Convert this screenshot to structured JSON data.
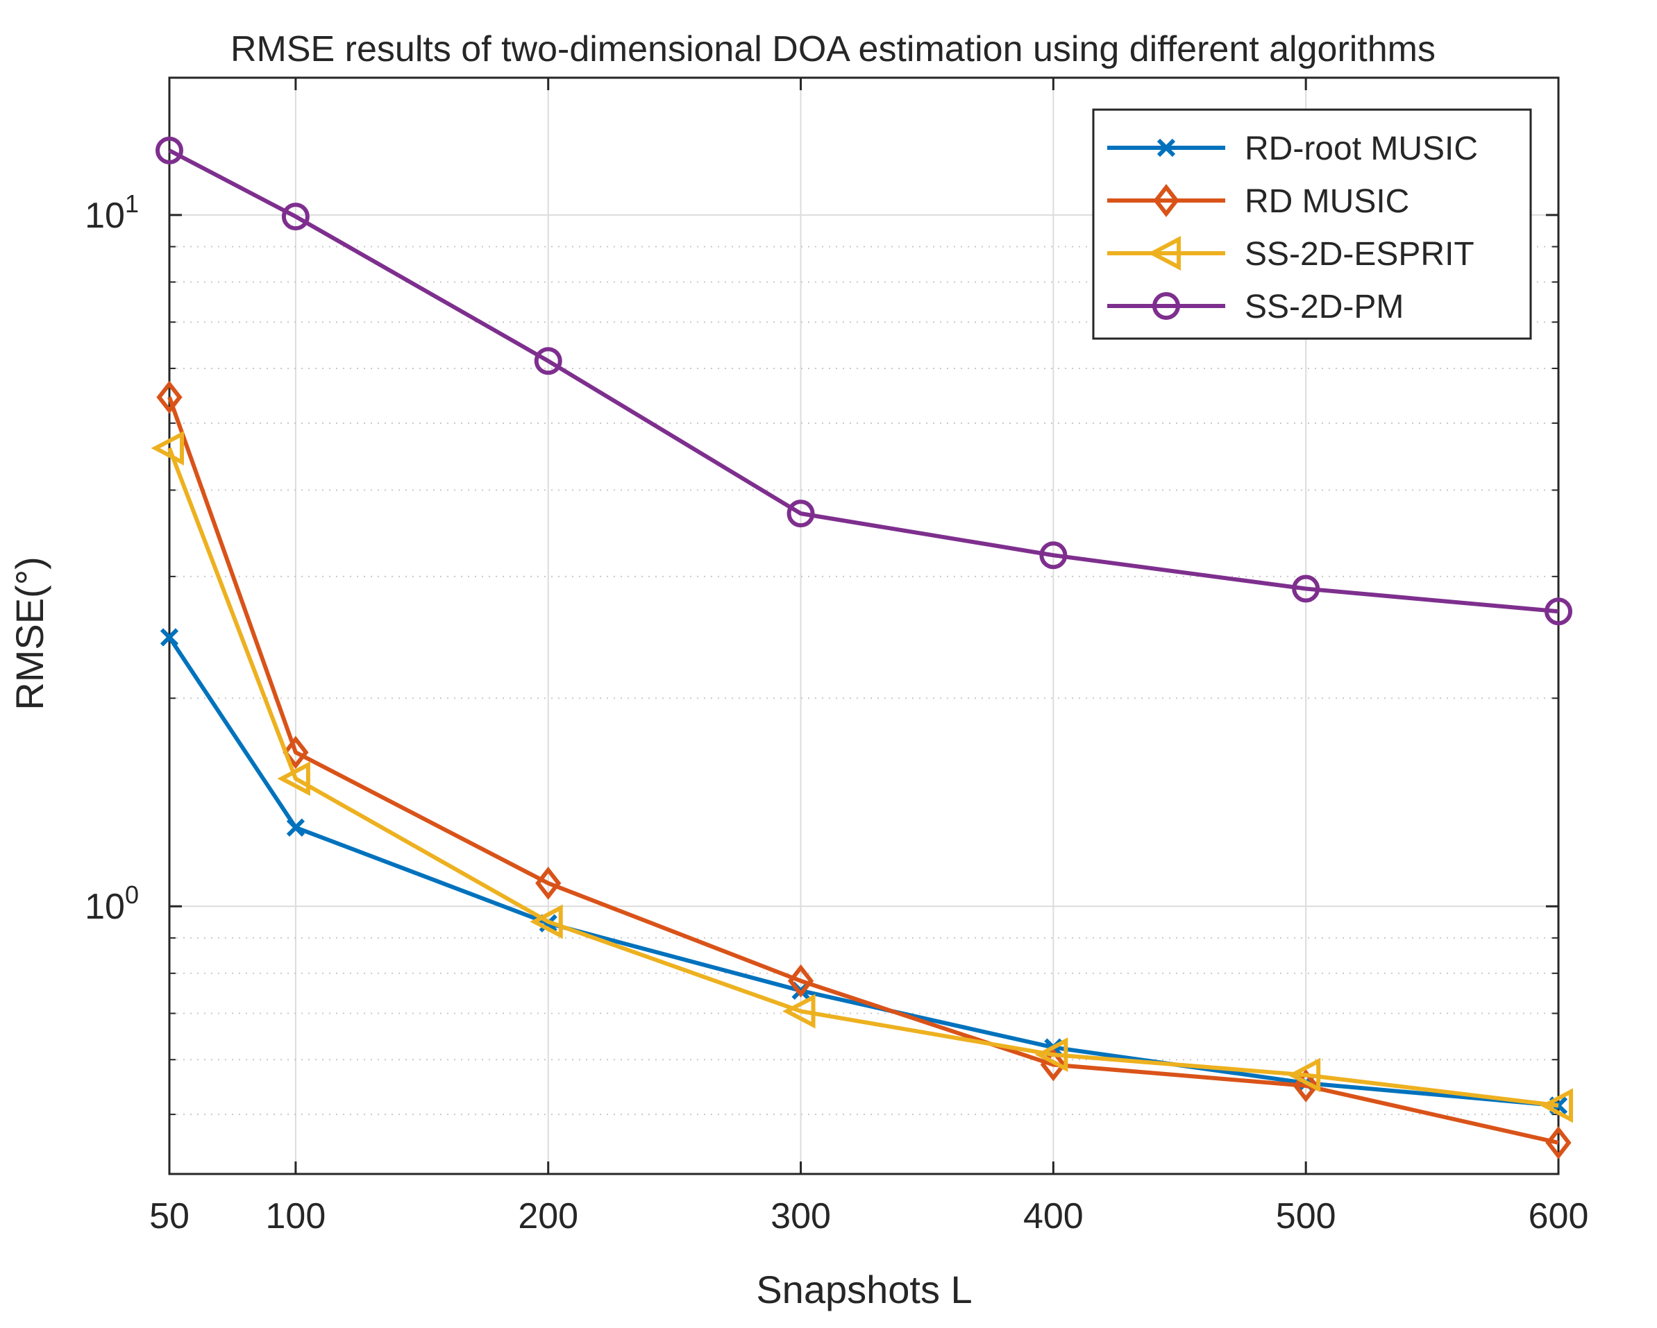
{
  "chart_data": {
    "type": "line",
    "title": "RMSE results of two-dimensional DOA estimation using different algorithms",
    "xlabel": "Snapshots L",
    "ylabel": "RMSE(°)",
    "x": [
      50,
      100,
      200,
      300,
      400,
      500,
      600
    ],
    "x_ticks": [
      "50",
      "100",
      "200",
      "300",
      "400",
      "500",
      "600"
    ],
    "xlim": [
      50,
      600
    ],
    "yscale": "log",
    "ylim": [
      0.41,
      15.8
    ],
    "y_ticks": [
      {
        "value": 1,
        "base": "10",
        "exp": "0"
      },
      {
        "value": 10,
        "base": "10",
        "exp": "1"
      }
    ],
    "grid": true,
    "legend_position": "top-right",
    "series": [
      {
        "name": "RD-root MUSIC",
        "color": "#0072BD",
        "marker": "x",
        "values": [
          2.45,
          1.3,
          0.945,
          0.755,
          0.625,
          0.555,
          0.515
        ]
      },
      {
        "name": "RD MUSIC",
        "color": "#D95319",
        "marker": "diamond",
        "values": [
          5.45,
          1.67,
          1.08,
          0.78,
          0.59,
          0.55,
          0.455
        ]
      },
      {
        "name": "SS-2D-ESPRIT",
        "color": "#EDB120",
        "marker": "triangle-left",
        "values": [
          4.6,
          1.53,
          0.95,
          0.705,
          0.61,
          0.57,
          0.515
        ]
      },
      {
        "name": "SS-2D-PM",
        "color": "#7E2F8E",
        "marker": "circle",
        "values": [
          12.4,
          9.95,
          6.15,
          3.7,
          3.22,
          2.88,
          2.67
        ]
      }
    ]
  }
}
